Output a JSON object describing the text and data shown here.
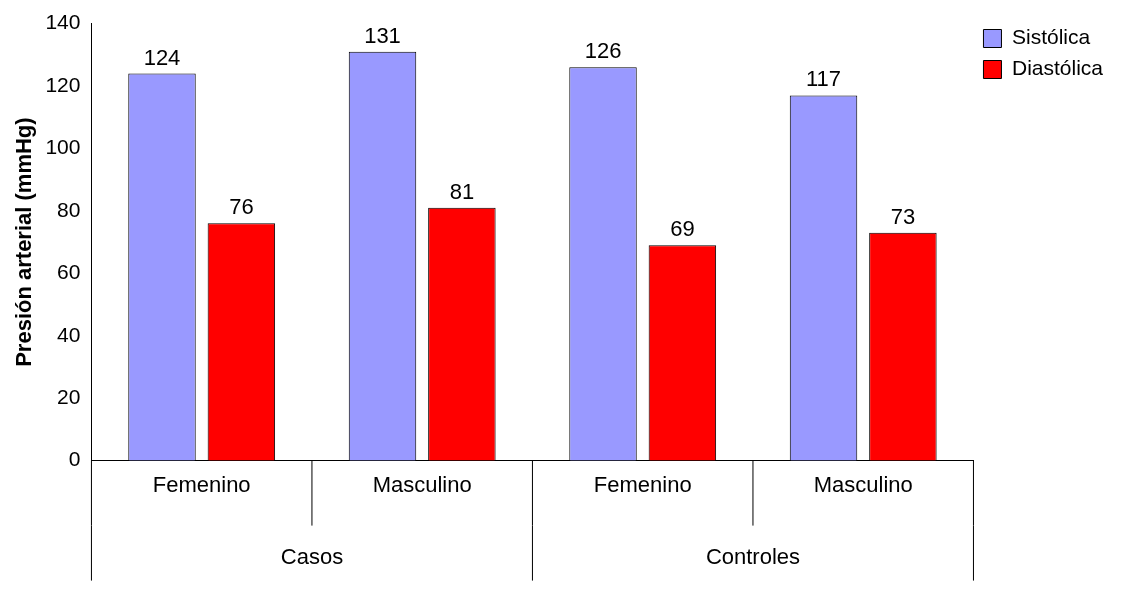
{
  "chart_data": {
    "type": "bar",
    "ylabel": "Presión arterial (mmHg)",
    "categories": [
      "Femenino",
      "Masculino",
      "Femenino",
      "Masculino"
    ],
    "series": [
      {
        "name": "Sistólica",
        "color": "#9999ff",
        "values": [
          124,
          131,
          126,
          117
        ]
      },
      {
        "name": "Diastólica",
        "color": "#ff0000",
        "values": [
          76,
          81,
          69,
          73
        ]
      }
    ],
    "ylim": [
      0,
      140
    ],
    "yticks": [
      0,
      20,
      40,
      60,
      80,
      100,
      120,
      140
    ],
    "grid": false,
    "legend": "right",
    "data_labels": true,
    "annotations": [
      "Casos",
      "Controles"
    ]
  }
}
